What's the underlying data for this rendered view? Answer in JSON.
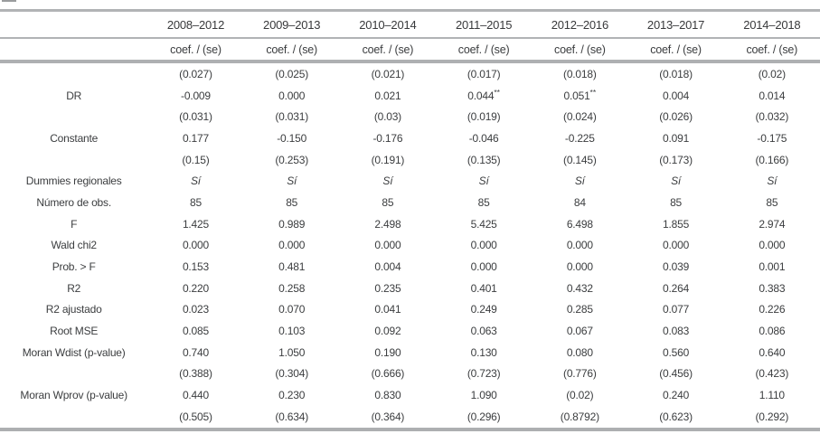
{
  "colors": {
    "text": "#3b3d3f",
    "rule_gray": "#b1b3b5"
  },
  "table": {
    "corner_label": "",
    "columns": [
      "2008–2012",
      "2009–2013",
      "2010–2014",
      "2011–2015",
      "2012–2016",
      "2013–2017",
      "2014–2018"
    ],
    "subheader_label": "coef. / (se)",
    "rows": [
      {
        "label": "",
        "values": [
          "(0.027)",
          "(0.025)",
          "(0.021)",
          "(0.017)",
          "(0.018)",
          "(0.018)",
          "(0.02)"
        ]
      },
      {
        "label": "DR",
        "values": [
          "-0.009",
          "0.000",
          "0.021",
          "0.044**",
          "0.051**",
          "0.004",
          "0.014"
        ]
      },
      {
        "label": "",
        "values": [
          "(0.031)",
          "(0.031)",
          "(0.03)",
          "(0.019)",
          "(0.024)",
          "(0.026)",
          "(0.032)"
        ]
      },
      {
        "label": "Constante",
        "values": [
          "0.177",
          "-0.150",
          "-0.176",
          "-0.046",
          "-0.225",
          "0.091",
          "-0.175"
        ]
      },
      {
        "label": "",
        "values": [
          "(0.15)",
          "(0.253)",
          "(0.191)",
          "(0.135)",
          "(0.145)",
          "(0.173)",
          "(0.166)"
        ]
      },
      {
        "label": "Dummies regionales",
        "values": [
          "Sí",
          "Sí",
          "Sí",
          "Sí",
          "Sí",
          "Sí",
          "Sí"
        ],
        "italic_values": true
      },
      {
        "label": "Número de obs.",
        "values": [
          "85",
          "85",
          "85",
          "85",
          "84",
          "85",
          "85"
        ]
      },
      {
        "label": "F",
        "values": [
          "1.425",
          "0.989",
          "2.498",
          "5.425",
          "6.498",
          "1.855",
          "2.974"
        ]
      },
      {
        "label": "Wald chi2",
        "values": [
          "0.000",
          "0.000",
          "0.000",
          "0.000",
          "0.000",
          "0.000",
          "0.000"
        ]
      },
      {
        "label": "Prob. > F",
        "values": [
          "0.153",
          "0.481",
          "0.004",
          "0.000",
          "0.000",
          "0.039",
          "0.001"
        ]
      },
      {
        "label": "R2",
        "values": [
          "0.220",
          "0.258",
          "0.235",
          "0.401",
          "0.432",
          "0.264",
          "0.383"
        ]
      },
      {
        "label": "R2 ajustado",
        "values": [
          "0.023",
          "0.070",
          "0.041",
          "0.249",
          "0.285",
          "0.077",
          "0.226"
        ]
      },
      {
        "label": "Root MSE",
        "values": [
          "0.085",
          "0.103",
          "0.092",
          "0.063",
          "0.067",
          "0.083",
          "0.086"
        ]
      },
      {
        "label": "Moran Wdist (p-value)",
        "values": [
          "0.740",
          "1.050",
          "0.190",
          "0.130",
          "0.080",
          "0.560",
          "0.640"
        ]
      },
      {
        "label": "",
        "values": [
          "(0.388)",
          "(0.304)",
          "(0.666)",
          "(0.723)",
          "(0.776)",
          "(0.456)",
          "(0.423)"
        ]
      },
      {
        "label": "Moran Wprov (p-value)",
        "values": [
          "0.440",
          "0.230",
          "0.830",
          "1.090",
          "(0.02)",
          "0.240",
          "1.110"
        ]
      },
      {
        "label": "",
        "values": [
          "(0.505)",
          "(0.634)",
          "(0.364)",
          "(0.296)",
          "(0.8792)",
          "(0.623)",
          "(0.292)"
        ]
      }
    ]
  }
}
